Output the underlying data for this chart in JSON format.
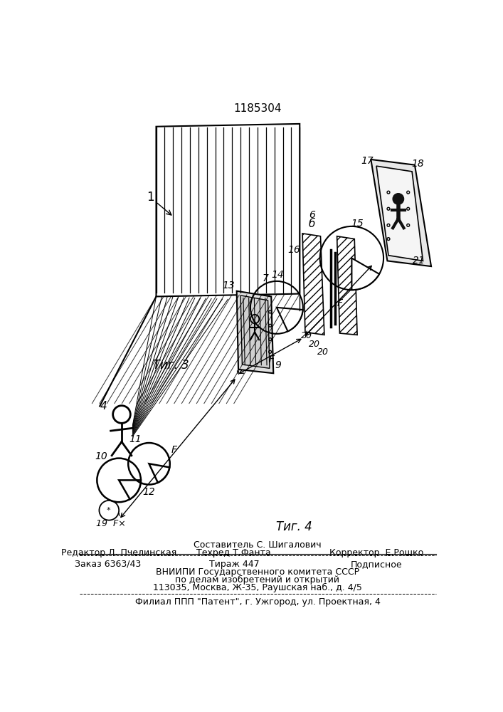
{
  "patent_number": "1185304",
  "fig3_label": "Τиг. 3",
  "fig4_label": "Τиг. 4",
  "footer_sestavitel": "Составитель С. Шигалович",
  "footer_redaktor": "Редактор Л. Пчелинская",
  "footer_tehred": "Техред Т.Фанта",
  "footer_korrektor": "Корректор  Е.Рошко",
  "footer_zakaz": "Заказ 6363/43",
  "footer_tirazh": "Тираж 447",
  "footer_podpisnoe": "Подписное",
  "footer_vniipи": "ВНИИПИ Государственного комитета СССР",
  "footer_po_delam": "по делам изобретений и открытий",
  "footer_address": "113035, Москва, Ж-35, Раушская наб., д. 4/5",
  "footer_filial": "Филиал ППП \"Патент\", г. Ужгород, ул. Проектная, 4",
  "bg_color": "#ffffff",
  "lc": "#000000"
}
